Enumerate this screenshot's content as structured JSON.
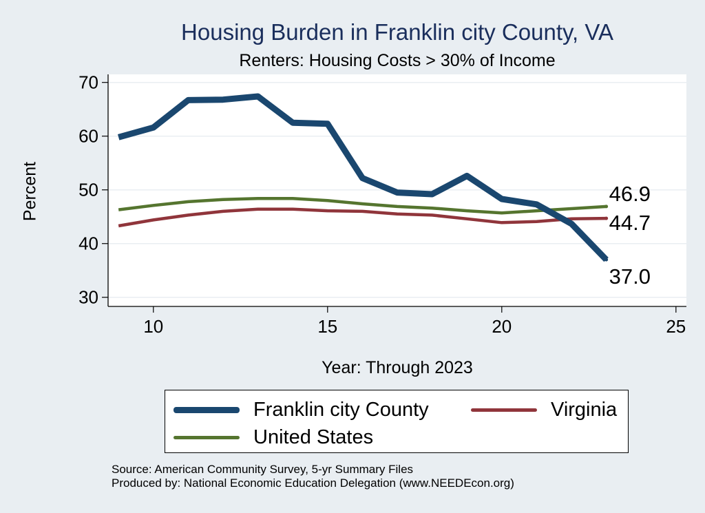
{
  "chart_data": {
    "type": "line",
    "title": "Housing Burden in Franklin city County, VA",
    "subtitle": "Renters: Housing Costs > 30% of Income",
    "xlabel": "Year: Through 2023",
    "ylabel": "Percent",
    "xlim": [
      8.7,
      25.3
    ],
    "ylim": [
      28.3,
      71.5
    ],
    "x_ticks": [
      10,
      15,
      20,
      25
    ],
    "y_ticks": [
      30,
      40,
      50,
      60,
      70
    ],
    "grid": "horizontal",
    "x": [
      9,
      10,
      11,
      12,
      13,
      14,
      15,
      16,
      17,
      18,
      19,
      20,
      21,
      22,
      23
    ],
    "series": [
      {
        "name": "Franklin city County",
        "color": "#1a476f",
        "values": [
          59.8,
          61.6,
          66.7,
          66.8,
          67.4,
          62.5,
          62.3,
          52.2,
          49.5,
          49.2,
          52.6,
          48.3,
          47.3,
          43.7,
          37.0
        ],
        "end_label": "37.0"
      },
      {
        "name": "Virginia",
        "color": "#90353b",
        "values": [
          43.3,
          44.4,
          45.3,
          46.0,
          46.4,
          46.4,
          46.1,
          46.0,
          45.5,
          45.3,
          44.6,
          43.9,
          44.1,
          44.6,
          44.7
        ],
        "end_label": "44.7"
      },
      {
        "name": "United States",
        "color": "#55752f",
        "values": [
          46.3,
          47.1,
          47.8,
          48.2,
          48.4,
          48.4,
          48.0,
          47.4,
          46.9,
          46.6,
          46.1,
          45.7,
          46.1,
          46.5,
          46.9
        ],
        "end_label": "46.9"
      }
    ],
    "legend": {
      "position": "bottom",
      "entries": [
        "Franklin city County",
        "Virginia",
        "United States"
      ]
    }
  },
  "footer": {
    "source": "Source: American Community Survey, 5-yr Summary Files",
    "produced": "Produced by: National Economic Education Delegation (www.NEEDEcon.org)"
  }
}
